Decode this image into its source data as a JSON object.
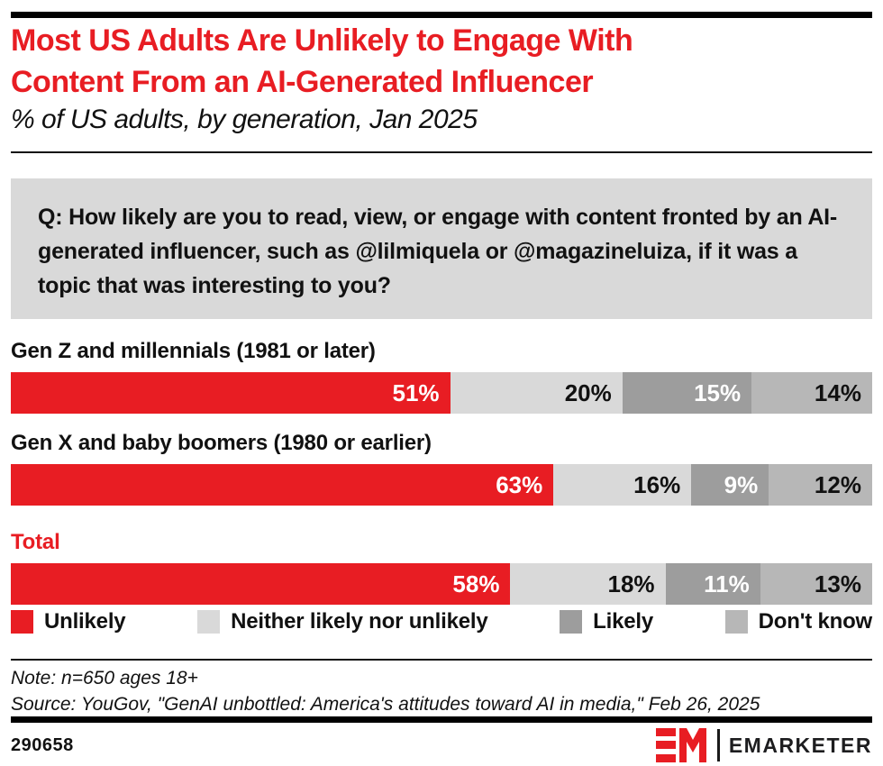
{
  "colors": {
    "accent_red": "#e81d23",
    "neither_gray": "#d9d9d9",
    "likely_gray": "#9d9d9d",
    "dont_know_gray": "#b7b7b7",
    "question_box_bg": "#d9d9d9",
    "bar_black": "#000000"
  },
  "header": {
    "title_line1": "Most US Adults Are Unlikely to Engage With",
    "title_line2": "Content From an AI-Generated Influencer",
    "subtitle": "% of US adults, by generation, Jan 2025"
  },
  "question": "Q: How likely are you to read, view, or engage with content fronted by an AI-generated influencer, such as @lilmiquela or @magazineluiza, if it was a topic that was interesting to you?",
  "chart_data": {
    "type": "bar",
    "stacked": true,
    "orientation": "horizontal",
    "xlim": [
      0,
      100
    ],
    "value_suffix": "%",
    "grid": false,
    "legend_position": "bottom",
    "categories": [
      "Gen Z and millennials (1981 or later)",
      "Gen X and baby boomers (1980 or earlier)",
      "Total"
    ],
    "category_label_colors": [
      "#111111",
      "#111111",
      "#e81d23"
    ],
    "series": [
      {
        "name": "Unlikely",
        "color": "#e81d23",
        "text_color": "#ffffff",
        "values": [
          51,
          63,
          58
        ]
      },
      {
        "name": "Neither likely nor unlikely",
        "color": "#d9d9d9",
        "text_color": "#111111",
        "values": [
          20,
          16,
          18
        ]
      },
      {
        "name": "Likely",
        "color": "#9d9d9d",
        "text_color": "#ffffff",
        "values": [
          15,
          9,
          11
        ]
      },
      {
        "name": "Don't know",
        "color": "#b7b7b7",
        "text_color": "#111111",
        "values": [
          14,
          12,
          13
        ]
      }
    ]
  },
  "footer": {
    "note": "Note: n=650 ages 18+",
    "source": "Source: YouGov, \"GenAI unbottled: America's attitudes toward AI in media,\" Feb 26, 2025",
    "chart_id": "290658",
    "brand_name": "EMARKETER"
  }
}
